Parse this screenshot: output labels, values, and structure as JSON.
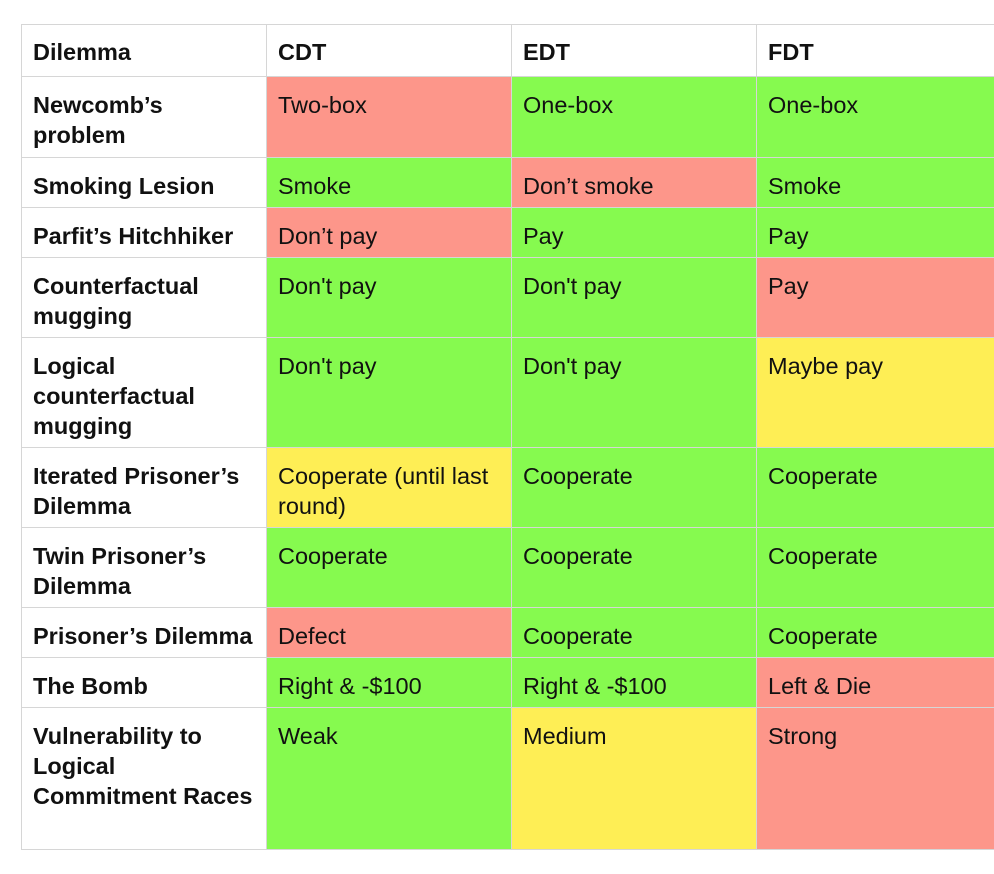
{
  "colors": {
    "good": "#86fa4f",
    "bad": "#fd968a",
    "mixed": "#feee55"
  },
  "table": {
    "headers": [
      "Dilemma",
      "CDT",
      "EDT",
      "FDT"
    ],
    "rows": [
      {
        "dilemma": "Newcomb’s problem",
        "cdt": "Two-box",
        "cdt_color": "red",
        "edt": "One-box",
        "edt_color": "green",
        "fdt": "One-box",
        "fdt_color": "green"
      },
      {
        "dilemma": "Smoking Lesion",
        "cdt": "Smoke",
        "cdt_color": "green",
        "edt": "Don’t smoke",
        "edt_color": "red",
        "fdt": "Smoke",
        "fdt_color": "green"
      },
      {
        "dilemma": "Parfit’s Hitchhiker",
        "cdt": "Don’t pay",
        "cdt_color": "red",
        "edt": "Pay",
        "edt_color": "green",
        "fdt": "Pay",
        "fdt_color": "green"
      },
      {
        "dilemma": "Counterfactual mugging",
        "cdt": "Don't pay",
        "cdt_color": "green",
        "edt": "Don't pay",
        "edt_color": "green",
        "fdt": "Pay",
        "fdt_color": "red"
      },
      {
        "dilemma": "Logical counterfactual mugging",
        "cdt": "Don't pay",
        "cdt_color": "green",
        "edt": "Don't pay",
        "edt_color": "green",
        "fdt": "Maybe pay",
        "fdt_color": "yellow"
      },
      {
        "dilemma": "Iterated Prisoner’s Dilemma",
        "cdt": "Cooperate (until last round)",
        "cdt_color": "yellow",
        "edt": "Cooperate",
        "edt_color": "green",
        "fdt": "Cooperate",
        "fdt_color": "green"
      },
      {
        "dilemma": "Twin Prisoner’s Dilemma",
        "cdt": "Cooperate",
        "cdt_color": "green",
        "edt": "Cooperate",
        "edt_color": "green",
        "fdt": "Cooperate",
        "fdt_color": "green"
      },
      {
        "dilemma": "Prisoner’s Dilemma",
        "cdt": "Defect",
        "cdt_color": "red",
        "edt": "Cooperate",
        "edt_color": "green",
        "fdt": "Cooperate",
        "fdt_color": "green"
      },
      {
        "dilemma": "The Bomb",
        "cdt": "Right & -$100",
        "cdt_color": "green",
        "edt": "Right & -$100",
        "edt_color": "green",
        "fdt": "Left & Die",
        "fdt_color": "red"
      },
      {
        "dilemma": "Vulnerability to Logical Commitment Races",
        "cdt": "Weak",
        "cdt_color": "green",
        "edt": "Medium",
        "edt_color": "yellow",
        "fdt": "Strong",
        "fdt_color": "red"
      }
    ]
  }
}
